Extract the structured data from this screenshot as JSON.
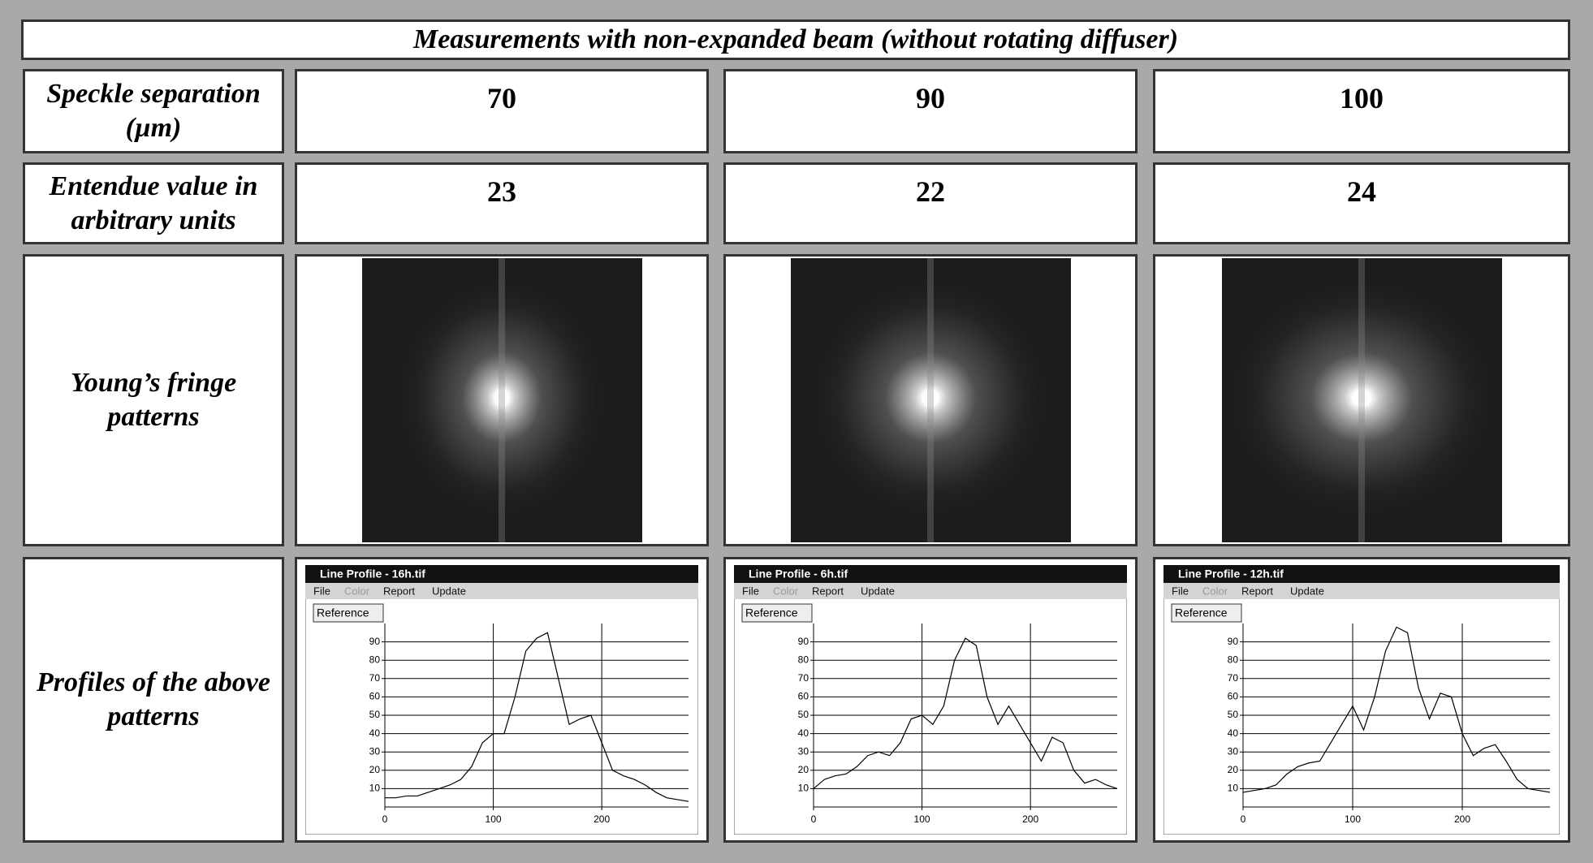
{
  "table": {
    "title": "Measurements with non-expanded beam (without rotating diffuser)",
    "rows": [
      {
        "label": "Speckle separation (µm)",
        "cells": [
          70,
          90,
          100
        ]
      },
      {
        "label": "Entendue value in arbitrary units",
        "cells": [
          23,
          22,
          24
        ]
      },
      {
        "label": "Young’s fringe patterns"
      },
      {
        "label": "Profiles of the above patterns"
      }
    ]
  },
  "profiles": [
    {
      "window_title": "Line Profile - 16h.tif",
      "menu": [
        "File",
        "Color",
        "Report",
        "Update"
      ],
      "button": "Reference",
      "xlim": [
        0,
        280
      ],
      "ylim": [
        0,
        100
      ],
      "xticks": [
        0,
        100,
        200
      ],
      "yticks": [
        10,
        20,
        30,
        40,
        50,
        60,
        70,
        80,
        90
      ],
      "x": [
        0,
        10,
        20,
        30,
        40,
        50,
        60,
        70,
        80,
        90,
        100,
        110,
        120,
        130,
        140,
        150,
        160,
        170,
        180,
        190,
        200,
        210,
        220,
        230,
        240,
        250,
        260,
        270,
        280
      ],
      "values": [
        5,
        5,
        6,
        6,
        8,
        10,
        12,
        15,
        22,
        35,
        40,
        40,
        60,
        85,
        92,
        95,
        70,
        45,
        48,
        50,
        35,
        20,
        17,
        15,
        12,
        8,
        5,
        4,
        3
      ]
    },
    {
      "window_title": "Line Profile - 6h.tif",
      "menu": [
        "File",
        "Color",
        "Report",
        "Update"
      ],
      "button": "Reference",
      "xlim": [
        0,
        280
      ],
      "ylim": [
        0,
        100
      ],
      "xticks": [
        0,
        100,
        200
      ],
      "yticks": [
        10,
        20,
        30,
        40,
        50,
        60,
        70,
        80,
        90
      ],
      "x": [
        0,
        10,
        20,
        30,
        40,
        50,
        60,
        70,
        80,
        90,
        100,
        110,
        120,
        130,
        140,
        150,
        160,
        170,
        180,
        190,
        200,
        210,
        220,
        230,
        240,
        250,
        260,
        270,
        280
      ],
      "values": [
        10,
        15,
        17,
        18,
        22,
        28,
        30,
        28,
        35,
        48,
        50,
        45,
        55,
        80,
        92,
        88,
        60,
        45,
        55,
        45,
        35,
        25,
        38,
        35,
        20,
        13,
        15,
        12,
        10
      ]
    },
    {
      "window_title": "Line Profile - 12h.tif",
      "menu": [
        "File",
        "Color",
        "Report",
        "Update"
      ],
      "button": "Reference",
      "xlim": [
        0,
        280
      ],
      "ylim": [
        0,
        100
      ],
      "xticks": [
        0,
        100,
        200
      ],
      "yticks": [
        10,
        20,
        30,
        40,
        50,
        60,
        70,
        80,
        90
      ],
      "x": [
        0,
        10,
        20,
        30,
        40,
        50,
        60,
        70,
        80,
        90,
        100,
        110,
        120,
        130,
        140,
        150,
        160,
        170,
        180,
        190,
        200,
        210,
        220,
        230,
        240,
        250,
        260,
        270,
        280
      ],
      "values": [
        8,
        9,
        10,
        12,
        18,
        22,
        24,
        25,
        35,
        45,
        55,
        42,
        60,
        85,
        98,
        95,
        65,
        48,
        62,
        60,
        40,
        28,
        32,
        34,
        25,
        15,
        10,
        9,
        8
      ]
    }
  ]
}
